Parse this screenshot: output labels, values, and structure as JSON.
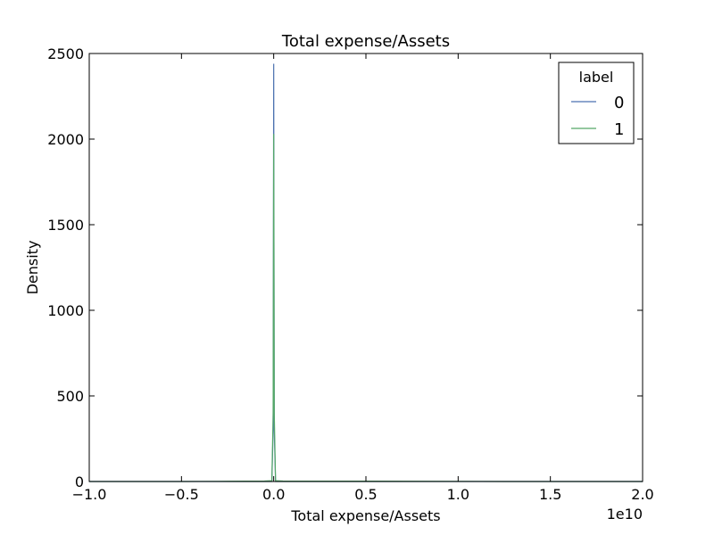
{
  "chart_data": {
    "type": "line",
    "title": "Total expense/Assets",
    "xlabel": "Total expense/Assets",
    "ylabel": "Density",
    "x_offset_label": "1e10",
    "xlim": [
      -1.0,
      2.0
    ],
    "ylim": [
      0,
      2500
    ],
    "x_ticks": [
      -1.0,
      -0.5,
      0.0,
      0.5,
      1.0,
      1.5,
      2.0
    ],
    "x_tick_labels": [
      "−1.0",
      "−0.5",
      "0.0",
      "0.5",
      "1.0",
      "1.5",
      "2.0"
    ],
    "y_ticks": [
      0,
      500,
      1000,
      1500,
      2000,
      2500
    ],
    "y_tick_labels": [
      "0",
      "500",
      "1000",
      "1500",
      "2000",
      "2500"
    ],
    "grid": false,
    "legend": {
      "title": "label",
      "placement": "top-right"
    },
    "series": [
      {
        "name": "0",
        "color": "#4c72b0",
        "x": [
          -1.0,
          -0.5,
          -0.05,
          -0.01,
          -0.003,
          0.0,
          0.003,
          0.01,
          0.05,
          0.5,
          1.0,
          1.25,
          1.5,
          2.0
        ],
        "y": [
          0,
          0,
          0,
          0,
          300,
          2440,
          300,
          0,
          0,
          0,
          0,
          0,
          0,
          0
        ]
      },
      {
        "name": "1",
        "color": "#55a868",
        "x": [
          -1.0,
          -0.5,
          -0.3,
          -0.05,
          -0.01,
          -0.003,
          0.0,
          0.003,
          0.01,
          0.05,
          0.5,
          1.0,
          1.25,
          1.5,
          2.0
        ],
        "y": [
          0,
          0,
          1,
          3,
          5,
          400,
          2030,
          400,
          5,
          3,
          2,
          1,
          0,
          0,
          0
        ]
      }
    ]
  }
}
